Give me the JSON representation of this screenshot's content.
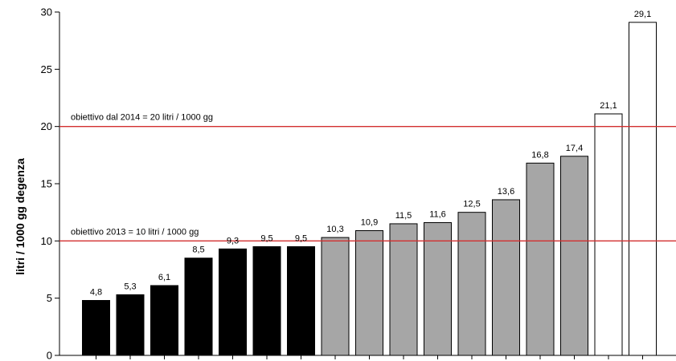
{
  "chart_data": {
    "type": "bar",
    "title": "",
    "xlabel": "",
    "ylabel": "litri / 1000 gg degenza",
    "ylim": [
      0,
      30
    ],
    "yticks": [
      0,
      5,
      10,
      15,
      20,
      25,
      30
    ],
    "grid": false,
    "legend": "none",
    "values": [
      4.8,
      5.3,
      6.1,
      8.5,
      9.3,
      9.5,
      9.5,
      10.3,
      10.9,
      11.5,
      11.6,
      12.5,
      13.6,
      16.8,
      17.4,
      21.1,
      29.1
    ],
    "value_labels": [
      "4,8",
      "5,3",
      "6,1",
      "8,5",
      "9,3",
      "9,5",
      "9,5",
      "10,3",
      "10,9",
      "11,5",
      "11,6",
      "12,5",
      "13,6",
      "16,8",
      "17,4",
      "21,1",
      "29,1"
    ],
    "bar_colors": [
      "#000000",
      "#000000",
      "#000000",
      "#000000",
      "#000000",
      "#000000",
      "#000000",
      "#a6a6a6",
      "#a6a6a6",
      "#a6a6a6",
      "#a6a6a6",
      "#a6a6a6",
      "#a6a6a6",
      "#a6a6a6",
      "#a6a6a6",
      "#ffffff",
      "#ffffff"
    ],
    "reference_lines": [
      {
        "value": 20,
        "label": "obiettivo dal 2014 = 20 litri / 1000 gg",
        "color": "#d32f2f"
      },
      {
        "value": 10,
        "label": "obiettivo 2013 = 10 litri / 1000 gg",
        "color": "#d32f2f"
      }
    ]
  }
}
